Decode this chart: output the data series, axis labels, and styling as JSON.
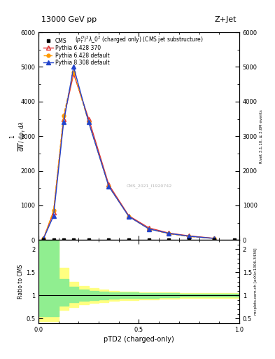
{
  "title_top": "13000 GeV pp",
  "title_right": "Z+Jet",
  "plot_title": "$(p_T^D)^2\\lambda\\_0^2$ (charged only) (CMS jet substructure)",
  "xlabel": "pTD2 (charged-only)",
  "right_label_top": "Rivet 3.1.10, ≥ 3.6M events",
  "right_label_bot": "mcplots.cern.ch [arXiv:1306.3436]",
  "watermark": "CMS_2021_I1920742",
  "pythia6_370_x": [
    0.025,
    0.075,
    0.125,
    0.175,
    0.25,
    0.35,
    0.45,
    0.55,
    0.65,
    0.75,
    0.875
  ],
  "pythia6_370_y": [
    50,
    800,
    3500,
    4800,
    3500,
    1600,
    700,
    350,
    200,
    120,
    50
  ],
  "pythia6_def_x": [
    0.025,
    0.075,
    0.125,
    0.175,
    0.25,
    0.35,
    0.45,
    0.55,
    0.65,
    0.75,
    0.875
  ],
  "pythia6_def_y": [
    50,
    850,
    3600,
    4850,
    3400,
    1550,
    680,
    320,
    180,
    100,
    45
  ],
  "pythia8_def_x": [
    0.025,
    0.075,
    0.125,
    0.175,
    0.25,
    0.35,
    0.45,
    0.55,
    0.65,
    0.75,
    0.875
  ],
  "pythia8_def_y": [
    40,
    700,
    3400,
    5000,
    3400,
    1550,
    680,
    320,
    190,
    110,
    45
  ],
  "cms_x": [
    0.025,
    0.075,
    0.125,
    0.175,
    0.25,
    0.35,
    0.45,
    0.55,
    0.65,
    0.75,
    0.875,
    0.975
  ],
  "cms_y": [
    0,
    0,
    0,
    0,
    0,
    0,
    0,
    0,
    0,
    0,
    0,
    0
  ],
  "ylim_main": [
    0,
    6000
  ],
  "yticks_main": [
    0,
    1000,
    2000,
    3000,
    4000,
    5000,
    6000
  ],
  "ylim_ratio": [
    0.4,
    2.2
  ],
  "ratio_yticks": [
    0.5,
    1.0,
    1.5,
    2.0
  ],
  "ratio_yticklabels": [
    "0.5",
    "1",
    "1.5",
    "2"
  ],
  "color_p6_370": "#e03030",
  "color_p6_def": "#ff9900",
  "color_p8_def": "#2244cc",
  "color_cms": "#000000",
  "green_band_edges": [
    0.0,
    0.05,
    0.1,
    0.15,
    0.2,
    0.25,
    0.3,
    0.35,
    0.4,
    0.5,
    0.6,
    0.7,
    0.8,
    0.9,
    1.0
  ],
  "green_band_lo": [
    0.55,
    0.55,
    0.78,
    0.85,
    0.88,
    0.9,
    0.92,
    0.93,
    0.94,
    0.95,
    0.96,
    0.97,
    0.97,
    0.97,
    0.97
  ],
  "green_band_hi": [
    2.2,
    2.2,
    1.35,
    1.18,
    1.12,
    1.1,
    1.08,
    1.07,
    1.06,
    1.05,
    1.05,
    1.04,
    1.04,
    1.04,
    1.04
  ],
  "yellow_band_edges": [
    0.0,
    0.05,
    0.1,
    0.15,
    0.2,
    0.25,
    0.3,
    0.35,
    0.4,
    0.5,
    0.6,
    0.7,
    0.8,
    0.9,
    1.0
  ],
  "yellow_band_lo": [
    0.45,
    0.45,
    0.68,
    0.75,
    0.8,
    0.83,
    0.86,
    0.88,
    0.9,
    0.92,
    0.93,
    0.95,
    0.95,
    0.95,
    0.95
  ],
  "yellow_band_hi": [
    2.2,
    2.2,
    1.6,
    1.3,
    1.2,
    1.15,
    1.12,
    1.1,
    1.08,
    1.07,
    1.06,
    1.05,
    1.05,
    1.05,
    1.05
  ]
}
